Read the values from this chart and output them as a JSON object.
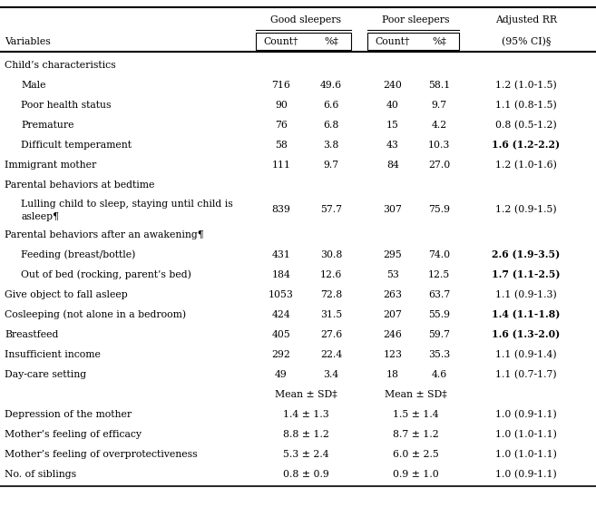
{
  "rows": [
    {
      "label": "Child’s characteristics",
      "indent": 0,
      "good_count": "",
      "good_pct": "",
      "poor_count": "",
      "poor_pct": "",
      "rr": "",
      "bold_rr": false,
      "section": true,
      "mean_row": false
    },
    {
      "label": "Male",
      "indent": 1,
      "good_count": "716",
      "good_pct": "49.6",
      "poor_count": "240",
      "poor_pct": "58.1",
      "rr": "1.2 (1.0-1.5)",
      "bold_rr": false,
      "section": false,
      "mean_row": false
    },
    {
      "label": "Poor health status",
      "indent": 1,
      "good_count": "90",
      "good_pct": "6.6",
      "poor_count": "40",
      "poor_pct": "9.7",
      "rr": "1.1 (0.8-1.5)",
      "bold_rr": false,
      "section": false,
      "mean_row": false
    },
    {
      "label": "Premature",
      "indent": 1,
      "good_count": "76",
      "good_pct": "6.8",
      "poor_count": "15",
      "poor_pct": "4.2",
      "rr": "0.8 (0.5-1.2)",
      "bold_rr": false,
      "section": false,
      "mean_row": false
    },
    {
      "label": "Difficult temperament",
      "indent": 1,
      "good_count": "58",
      "good_pct": "3.8",
      "poor_count": "43",
      "poor_pct": "10.3",
      "rr": "1.6 (1.2-2.2)",
      "bold_rr": true,
      "section": false,
      "mean_row": false
    },
    {
      "label": "Immigrant mother",
      "indent": 0,
      "good_count": "111",
      "good_pct": "9.7",
      "poor_count": "84",
      "poor_pct": "27.0",
      "rr": "1.2 (1.0-1.6)",
      "bold_rr": false,
      "section": false,
      "mean_row": false
    },
    {
      "label": "Parental behaviors at bedtime",
      "indent": 0,
      "good_count": "",
      "good_pct": "",
      "poor_count": "",
      "poor_pct": "",
      "rr": "",
      "bold_rr": false,
      "section": true,
      "mean_row": false
    },
    {
      "label": "Lulling child to sleep, staying until child is\nasleep¶",
      "indent": 1,
      "good_count": "839",
      "good_pct": "57.7",
      "poor_count": "307",
      "poor_pct": "75.9",
      "rr": "1.2 (0.9-1.5)",
      "bold_rr": false,
      "section": false,
      "mean_row": false
    },
    {
      "label": "Parental behaviors after an awakening¶",
      "indent": 0,
      "good_count": "",
      "good_pct": "",
      "poor_count": "",
      "poor_pct": "",
      "rr": "",
      "bold_rr": false,
      "section": true,
      "mean_row": false
    },
    {
      "label": "Feeding (breast/bottle)",
      "indent": 1,
      "good_count": "431",
      "good_pct": "30.8",
      "poor_count": "295",
      "poor_pct": "74.0",
      "rr": "2.6 (1.9-3.5)",
      "bold_rr": true,
      "section": false,
      "mean_row": false
    },
    {
      "label": "Out of bed (rocking, parent’s bed)",
      "indent": 1,
      "good_count": "184",
      "good_pct": "12.6",
      "poor_count": "53",
      "poor_pct": "12.5",
      "rr": "1.7 (1.1-2.5)",
      "bold_rr": true,
      "section": false,
      "mean_row": false
    },
    {
      "label": "Give object to fall asleep",
      "indent": 0,
      "good_count": "1053",
      "good_pct": "72.8",
      "poor_count": "263",
      "poor_pct": "63.7",
      "rr": "1.1 (0.9-1.3)",
      "bold_rr": false,
      "section": false,
      "mean_row": false
    },
    {
      "label": "Cosleeping (not alone in a bedroom)",
      "indent": 0,
      "good_count": "424",
      "good_pct": "31.5",
      "poor_count": "207",
      "poor_pct": "55.9",
      "rr": "1.4 (1.1-1.8)",
      "bold_rr": true,
      "section": false,
      "mean_row": false
    },
    {
      "label": "Breastfeed",
      "indent": 0,
      "good_count": "405",
      "good_pct": "27.6",
      "poor_count": "246",
      "poor_pct": "59.7",
      "rr": "1.6 (1.3-2.0)",
      "bold_rr": true,
      "section": false,
      "mean_row": false
    },
    {
      "label": "Insufficient income",
      "indent": 0,
      "good_count": "292",
      "good_pct": "22.4",
      "poor_count": "123",
      "poor_pct": "35.3",
      "rr": "1.1 (0.9-1.4)",
      "bold_rr": false,
      "section": false,
      "mean_row": false
    },
    {
      "label": "Day-care setting",
      "indent": 0,
      "good_count": "49",
      "good_pct": "3.4",
      "poor_count": "18",
      "poor_pct": "4.6",
      "rr": "1.1 (0.7-1.7)",
      "bold_rr": false,
      "section": false,
      "mean_row": false
    },
    {
      "label": "",
      "indent": 0,
      "good_count": "Mean ± SD‡",
      "good_pct": "",
      "poor_count": "Mean ± SD‡",
      "poor_pct": "",
      "rr": "",
      "bold_rr": false,
      "section": false,
      "mean_row": true,
      "mean_header": true
    },
    {
      "label": "Depression of the mother",
      "indent": 0,
      "good_count": "1.4 ± 1.3",
      "good_pct": "",
      "poor_count": "1.5 ± 1.4",
      "poor_pct": "",
      "rr": "1.0 (0.9-1.1)",
      "bold_rr": false,
      "section": false,
      "mean_row": true,
      "mean_header": false
    },
    {
      "label": "Mother’s feeling of efficacy",
      "indent": 0,
      "good_count": "8.8 ± 1.2",
      "good_pct": "",
      "poor_count": "8.7 ± 1.2",
      "poor_pct": "",
      "rr": "1.0 (1.0-1.1)",
      "bold_rr": false,
      "section": false,
      "mean_row": true,
      "mean_header": false
    },
    {
      "label": "Mother’s feeling of overprotectiveness",
      "indent": 0,
      "good_count": "5.3 ± 2.4",
      "good_pct": "",
      "poor_count": "6.0 ± 2.5",
      "poor_pct": "",
      "rr": "1.0 (1.0-1.1)",
      "bold_rr": false,
      "section": false,
      "mean_row": true,
      "mean_header": false
    },
    {
      "label": "No. of siblings",
      "indent": 0,
      "good_count": "0.8 ± 0.9",
      "good_pct": "",
      "poor_count": "0.9 ± 1.0",
      "poor_pct": "",
      "rr": "1.0 (0.9-1.1)",
      "bold_rr": false,
      "section": false,
      "mean_row": true,
      "mean_header": false
    }
  ],
  "bg_color": "#ffffff",
  "text_color": "#000000",
  "font_size": 7.8
}
